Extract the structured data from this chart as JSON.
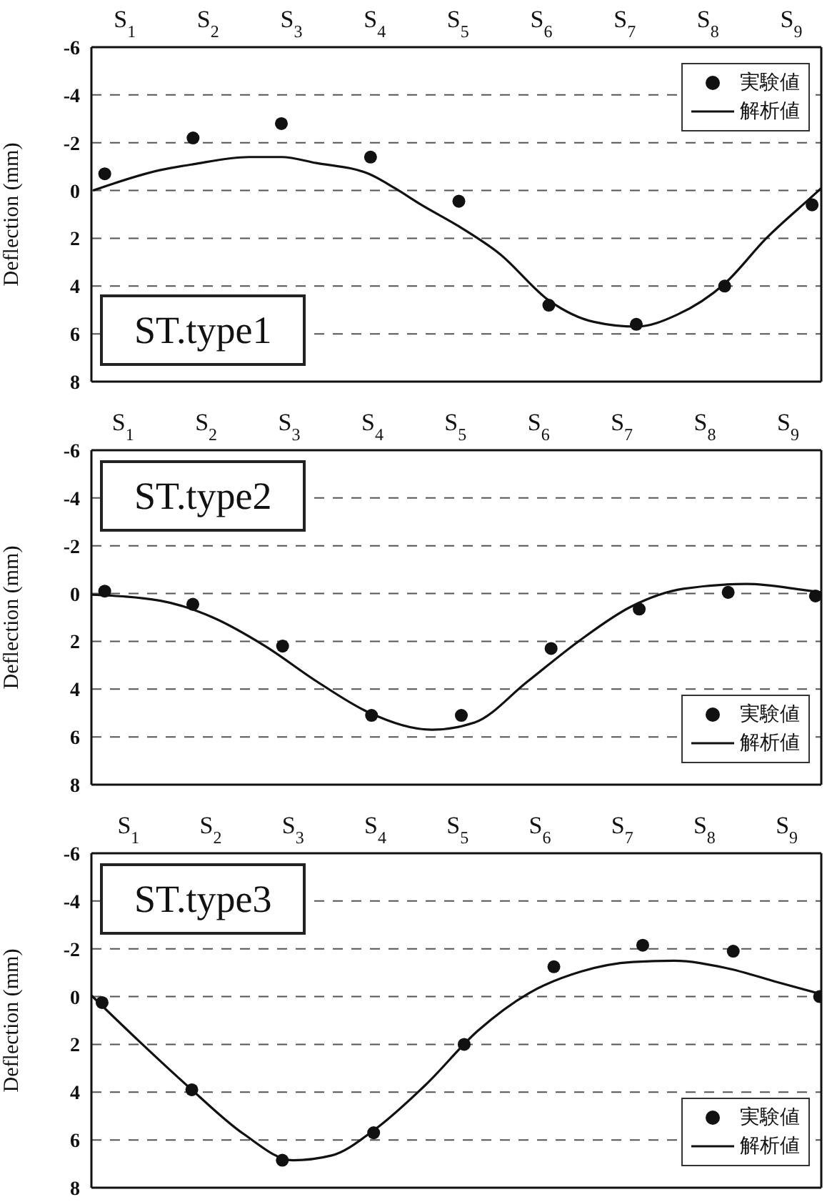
{
  "chart_data": [
    {
      "type": "scatter",
      "title": "ST.type1",
      "ylabel": "Deflection (mm)",
      "xlim": [
        0.6,
        9.36
      ],
      "xticks": [
        {
          "value": 1,
          "label": "S$_{1}$"
        },
        {
          "value": 2,
          "label": "S$_{2}$"
        },
        {
          "value": 3,
          "label": "S$_{3}$"
        },
        {
          "value": 4,
          "label": "S$_{4}$"
        },
        {
          "value": 5,
          "label": "S$_{5}$"
        },
        {
          "value": 6,
          "label": "S$_{6}$"
        },
        {
          "value": 7,
          "label": "S$_{7}$"
        },
        {
          "value": 8,
          "label": "S$_{8}$"
        },
        {
          "value": 9,
          "label": "S$_{9}$"
        }
      ],
      "ylim": [
        8,
        -6
      ],
      "yticks": [
        -6,
        -4,
        -2,
        0,
        2,
        4,
        6,
        8
      ],
      "grid": "y",
      "legend": "top right",
      "series": [
        {
          "name": "実験値",
          "marker": "circle",
          "color": "#111111",
          "x": [
            0.76,
            1.82,
            2.88,
            3.95,
            5.01,
            6.09,
            7.14,
            8.2,
            9.25
          ],
          "values": [
            -0.7,
            -2.2,
            -2.8,
            -1.4,
            0.45,
            4.8,
            5.6,
            4.0,
            0.6
          ]
        },
        {
          "name": "解析値",
          "type": "line",
          "marker": "none",
          "color": "#111111",
          "x": [
            0.62,
            1.42,
            1.82,
            2.49,
            2.88,
            3.3,
            3.93,
            4.24,
            4.56,
            5.01,
            5.5,
            6.09,
            6.63,
            7.14,
            7.63,
            8.2,
            8.7,
            9.25,
            9.36
          ],
          "values": [
            0,
            -0.85,
            -1.1,
            -1.4,
            -1.4,
            -1.15,
            -0.7,
            -0.1,
            0.6,
            1.5,
            2.65,
            4.6,
            5.5,
            5.7,
            5.2,
            3.9,
            2.0,
            0.25,
            -0.1
          ]
        }
      ]
    },
    {
      "type": "scatter",
      "title": "ST.type2",
      "ylabel": "Deflection (mm)",
      "xlim": [
        0.62,
        9.4
      ],
      "xticks": [
        {
          "value": 1,
          "label": "S$_{1}$"
        },
        {
          "value": 2,
          "label": "S$_{2}$"
        },
        {
          "value": 3,
          "label": "S$_{3}$"
        },
        {
          "value": 4,
          "label": "S$_{4}$"
        },
        {
          "value": 5,
          "label": "S$_{5}$"
        },
        {
          "value": 6,
          "label": "S$_{6}$"
        },
        {
          "value": 7,
          "label": "S$_{7}$"
        },
        {
          "value": 8,
          "label": "S$_{8}$"
        },
        {
          "value": 9,
          "label": "S$_{9}$"
        }
      ],
      "ylim": [
        8,
        -6
      ],
      "yticks": [
        -6,
        -4,
        -2,
        0,
        2,
        4,
        6,
        8
      ],
      "grid": "y",
      "legend": "bottom right",
      "series": [
        {
          "name": "実験値",
          "marker": "circle",
          "color": "#111111",
          "x": [
            0.78,
            1.84,
            2.92,
            3.99,
            5.07,
            6.15,
            7.21,
            8.28,
            9.33
          ],
          "values": [
            -0.1,
            0.45,
            2.2,
            5.1,
            5.1,
            2.3,
            0.65,
            -0.05,
            0.1
          ]
        },
        {
          "name": "解析値",
          "type": "line",
          "marker": "none",
          "color": "#111111",
          "x": [
            0.62,
            1.45,
            2.08,
            2.71,
            3.34,
            3.97,
            4.72,
            5.23,
            5.86,
            6.48,
            7.11,
            7.74,
            8.5,
            9.19,
            9.4
          ],
          "values": [
            0.05,
            0.3,
            1.0,
            2.2,
            3.7,
            5.0,
            5.7,
            5.4,
            3.7,
            2.0,
            0.55,
            -0.2,
            -0.4,
            -0.15,
            -0.05
          ]
        }
      ]
    },
    {
      "type": "scatter",
      "title": "ST.type3",
      "ylabel": "Deflection (mm)",
      "xlim": [
        0.55,
        9.42
      ],
      "xticks": [
        {
          "value": 1,
          "label": "S$_{1}$"
        },
        {
          "value": 2,
          "label": "S$_{2}$"
        },
        {
          "value": 3,
          "label": "S$_{3}$"
        },
        {
          "value": 4,
          "label": "S$_{4}$"
        },
        {
          "value": 5,
          "label": "S$_{5}$"
        },
        {
          "value": 6,
          "label": "S$_{6}$"
        },
        {
          "value": 7,
          "label": "S$_{7}$"
        },
        {
          "value": 8,
          "label": "S$_{8}$"
        },
        {
          "value": 9,
          "label": "S$_{9}$"
        }
      ],
      "ylim": [
        8,
        -6
      ],
      "yticks": [
        -6,
        -4,
        -2,
        0,
        2,
        4,
        6,
        8
      ],
      "grid": "y",
      "legend": "bottom right",
      "series": [
        {
          "name": "実験値",
          "marker": "circle",
          "color": "#111111",
          "x": [
            0.68,
            1.77,
            2.87,
            3.98,
            5.08,
            6.17,
            7.25,
            8.35,
            9.4
          ],
          "values": [
            0.25,
            3.9,
            6.85,
            5.7,
            2.0,
            -1.25,
            -2.15,
            -1.9,
            0
          ]
        },
        {
          "name": "解析値",
          "type": "line",
          "marker": "none",
          "color": "#111111",
          "x": [
            0.55,
            1.14,
            1.77,
            2.4,
            3.0,
            3.47,
            3.98,
            4.61,
            5.24,
            5.87,
            6.5,
            7.13,
            7.63,
            8.26,
            8.89,
            9.42
          ],
          "values": [
            -0.05,
            1.9,
            3.9,
            5.75,
            6.85,
            6.65,
            5.6,
            3.7,
            1.45,
            -0.15,
            -1.05,
            -1.45,
            -1.5,
            -1.2,
            -0.6,
            -0.1
          ]
        }
      ]
    }
  ]
}
